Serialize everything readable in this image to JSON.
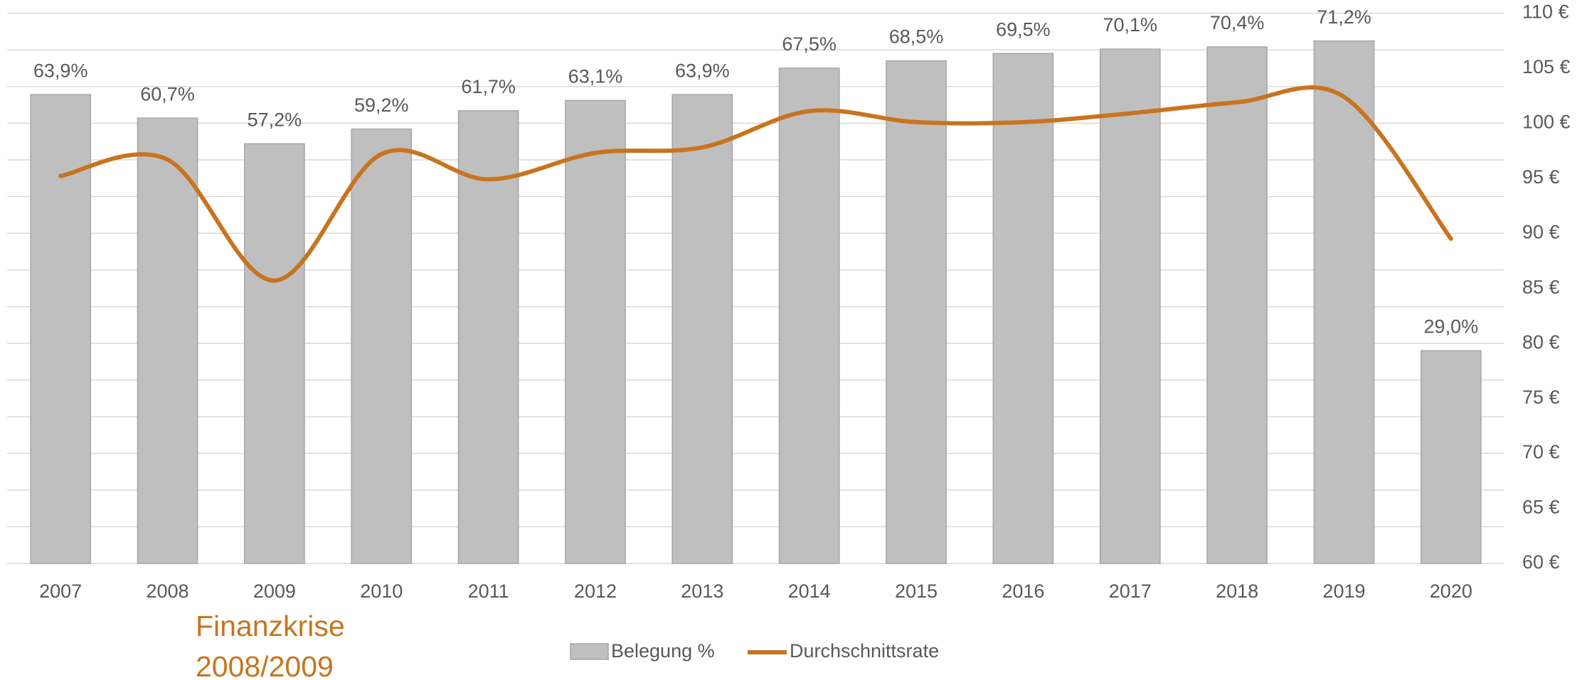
{
  "chart_data": {
    "type": "bar",
    "categories": [
      "2007",
      "2008",
      "2009",
      "2010",
      "2011",
      "2012",
      "2013",
      "2014",
      "2015",
      "2016",
      "2017",
      "2018",
      "2019",
      "2020"
    ],
    "series": [
      {
        "name": "Belegung %",
        "type": "bar",
        "color": "#bfbfbf",
        "edge_color": "#a6a6a6",
        "values": [
          63.9,
          60.7,
          57.2,
          59.2,
          61.7,
          63.1,
          63.9,
          67.5,
          68.5,
          69.5,
          70.1,
          70.4,
          71.2,
          29.0
        ],
        "value_labels": [
          "63,9%",
          "60,7%",
          "57,2%",
          "59,2%",
          "61,7%",
          "63,1%",
          "63,9%",
          "67,5%",
          "68,5%",
          "69,5%",
          "70,1%",
          "70,4%",
          "71,2%",
          "29,0%"
        ]
      },
      {
        "name": "Durchschnittsrate",
        "type": "line",
        "axis": "y2",
        "color": "#c8741f",
        "values": [
          95.2,
          96.7,
          85.7,
          97.2,
          94.9,
          97.3,
          97.8,
          101.1,
          100.1,
          100.1,
          100.9,
          101.9,
          102.4,
          89.5
        ]
      }
    ],
    "ylim": [
      0,
      75
    ],
    "yticks": [
      0,
      5,
      10,
      15,
      20,
      25,
      30,
      35,
      40,
      45,
      50,
      55,
      60,
      65,
      70,
      75
    ],
    "y2lim": [
      60,
      110
    ],
    "y2ticks": [
      {
        "value": 60,
        "label": "60 €"
      },
      {
        "value": 65,
        "label": "65 €"
      },
      {
        "value": 70,
        "label": "70 €"
      },
      {
        "value": 75,
        "label": "75 €"
      },
      {
        "value": 80,
        "label": "80 €"
      },
      {
        "value": 85,
        "label": "85 €"
      },
      {
        "value": 90,
        "label": "90 €"
      },
      {
        "value": 95,
        "label": "95 €"
      },
      {
        "value": 100,
        "label": "100 €"
      },
      {
        "value": 105,
        "label": "105 €"
      },
      {
        "value": 110,
        "label": "110 €"
      }
    ],
    "grid": true,
    "legend": "bottom",
    "annotations": [
      "Finanzkrise",
      "2008/2009"
    ]
  }
}
